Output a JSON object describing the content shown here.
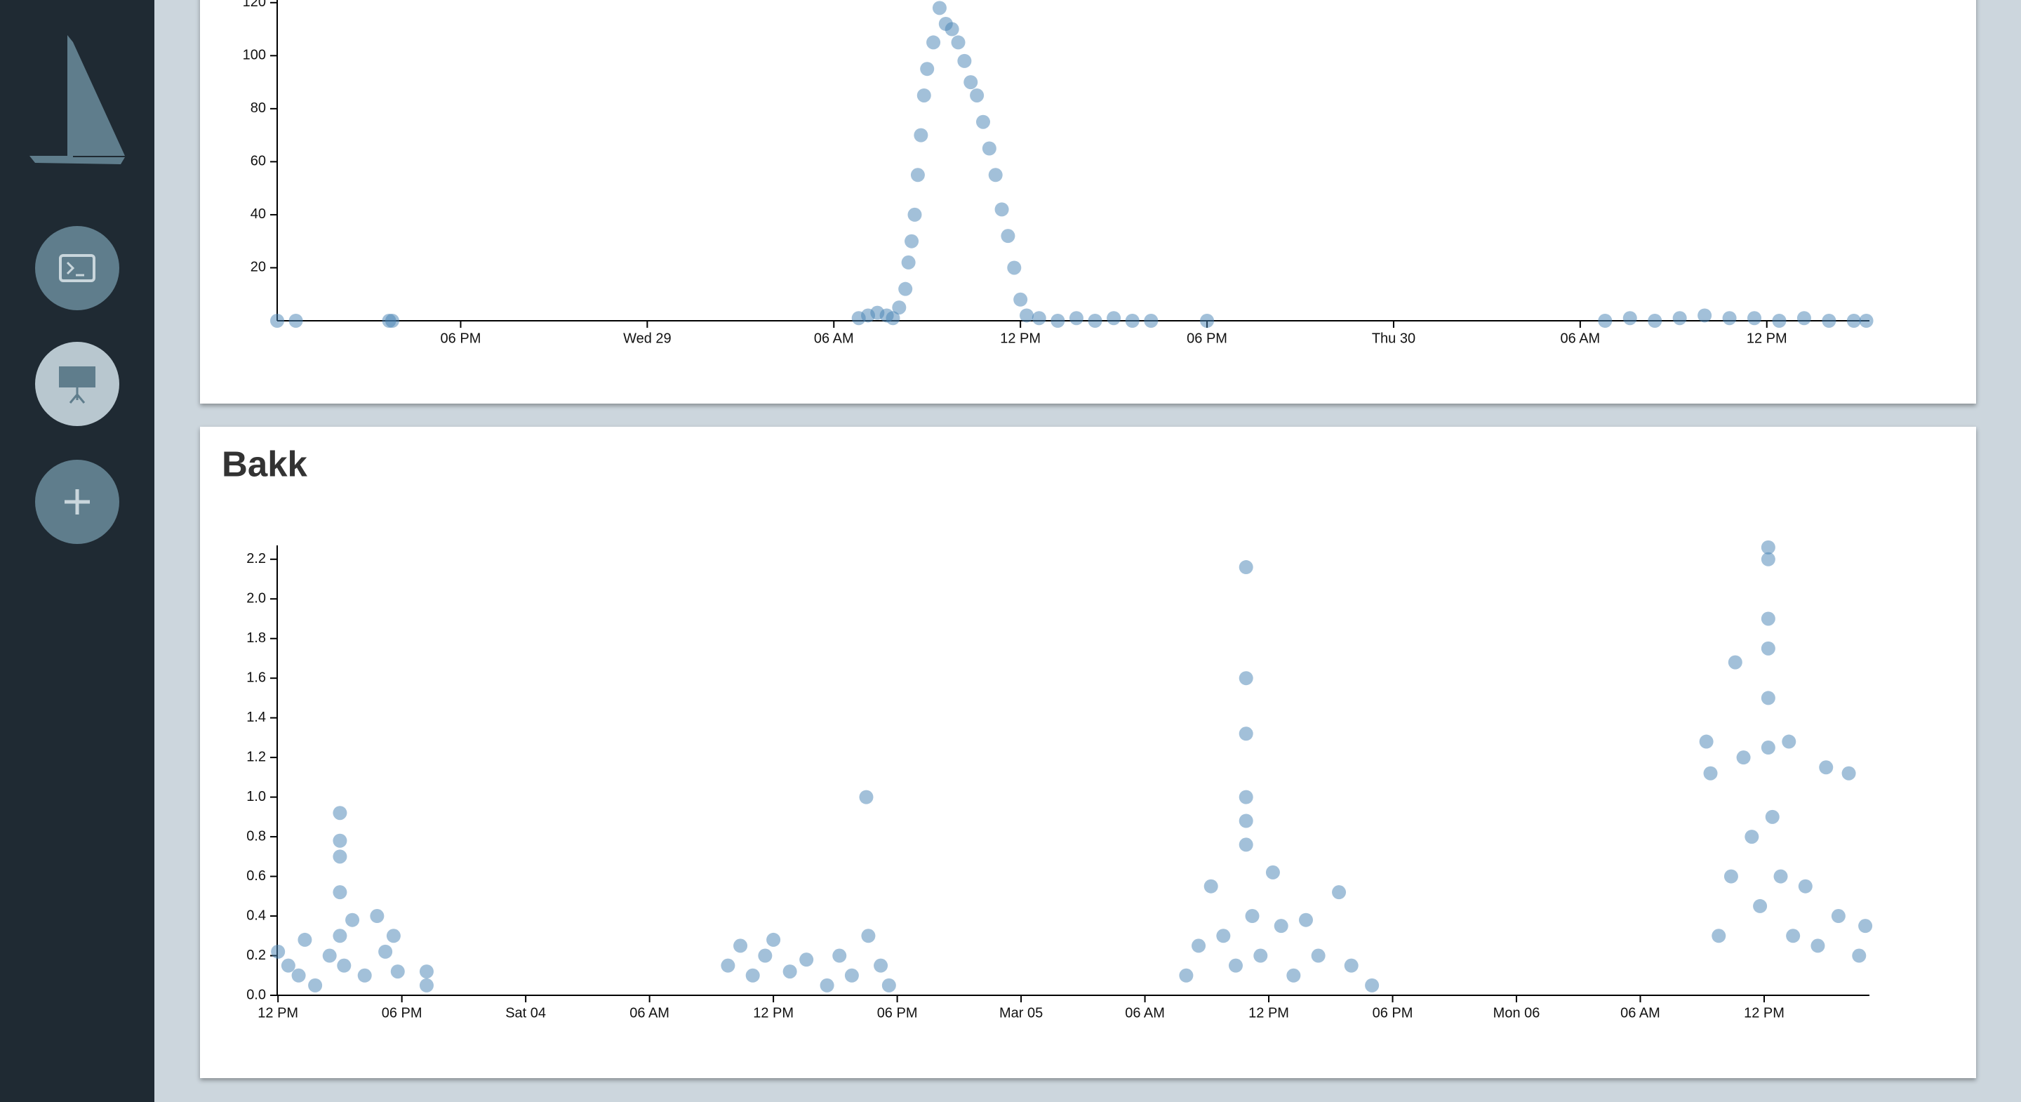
{
  "chart_data": [
    {
      "type": "scatter",
      "x": [
        0.1,
        0.7,
        3.7,
        3.8,
        18.8,
        19.1,
        19.4,
        19.7,
        19.9,
        20.1,
        20.3,
        20.4,
        20.5,
        20.6,
        20.7,
        20.8,
        20.9,
        21.0,
        21.2,
        21.4,
        21.6,
        21.8,
        22.0,
        22.2,
        22.4,
        22.6,
        22.8,
        23.0,
        23.2,
        23.4,
        23.6,
        23.8,
        24.0,
        24.2,
        24.6,
        25.2,
        25.8,
        26.4,
        27.0,
        27.6,
        28.2,
        30.0,
        42.8,
        43.6,
        44.4,
        45.2,
        46.0,
        46.8,
        47.6,
        48.4,
        49.2,
        50.0,
        50.8,
        51.2
      ],
      "values": [
        0,
        0,
        0,
        0,
        1,
        2,
        3,
        2,
        1,
        5,
        12,
        22,
        30,
        40,
        55,
        70,
        85,
        95,
        105,
        118,
        112,
        110,
        105,
        98,
        90,
        85,
        75,
        65,
        55,
        42,
        32,
        20,
        8,
        2,
        1,
        0,
        1,
        0,
        1,
        0,
        0,
        0,
        0,
        1,
        0,
        1,
        2,
        1,
        1,
        0,
        1,
        0,
        0,
        0
      ],
      "color": "#4682b4",
      "xlim": [
        0.1,
        51.3
      ],
      "xticks": [
        {
          "value": 6,
          "label": "06 PM"
        },
        {
          "value": 12,
          "label": "Wed 29"
        },
        {
          "value": 18,
          "label": "06 AM"
        },
        {
          "value": 24,
          "label": "12 PM"
        },
        {
          "value": 30,
          "label": "06 PM"
        },
        {
          "value": 36,
          "label": "Thu 30"
        },
        {
          "value": 42,
          "label": "06 AM"
        },
        {
          "value": 48,
          "label": "12 PM"
        }
      ],
      "ylim": [
        0,
        121
      ],
      "yticks": [
        20,
        40,
        60,
        80,
        100,
        120
      ]
    },
    {
      "type": "scatter",
      "title": "Bakk",
      "x": [
        0,
        0.5,
        1.0,
        1.3,
        1.8,
        2.5,
        3.0,
        3.0,
        3.0,
        3.0,
        3.0,
        3.2,
        3.6,
        4.2,
        4.8,
        5.2,
        5.6,
        5.8,
        7.2,
        7.2,
        21.8,
        22.4,
        23.0,
        23.6,
        24.0,
        24.8,
        25.6,
        26.6,
        27.2,
        27.8,
        28.5,
        28.6,
        29.2,
        29.6,
        44.0,
        44.6,
        45.2,
        45.8,
        46.4,
        46.9,
        46.9,
        46.9,
        46.9,
        46.9,
        46.9,
        47.2,
        47.6,
        48.2,
        48.6,
        49.2,
        49.8,
        50.4,
        51.4,
        52.0,
        53.0,
        69.2,
        69.4,
        69.8,
        70.4,
        70.6,
        71.0,
        71.4,
        71.8,
        72.2,
        72.2,
        72.2,
        72.2,
        72.2,
        72.2,
        72.4,
        72.8,
        73.2,
        73.4,
        74.0,
        74.6,
        75.0,
        75.6,
        76.1,
        76.6,
        76.9
      ],
      "values": [
        0.22,
        0.15,
        0.1,
        0.28,
        0.05,
        0.2,
        0.92,
        0.78,
        0.7,
        0.52,
        0.3,
        0.15,
        0.38,
        0.1,
        0.4,
        0.22,
        0.3,
        0.12,
        0.12,
        0.05,
        0.15,
        0.25,
        0.1,
        0.2,
        0.28,
        0.12,
        0.18,
        0.05,
        0.2,
        0.1,
        1.0,
        0.3,
        0.15,
        0.05,
        0.1,
        0.25,
        0.55,
        0.3,
        0.15,
        2.16,
        1.6,
        1.32,
        1.0,
        0.88,
        0.76,
        0.4,
        0.2,
        0.62,
        0.35,
        0.1,
        0.38,
        0.2,
        0.52,
        0.15,
        0.05,
        1.28,
        1.12,
        0.3,
        0.6,
        1.68,
        1.2,
        0.8,
        0.45,
        2.26,
        2.2,
        1.9,
        1.75,
        1.5,
        1.25,
        0.9,
        0.6,
        1.28,
        0.3,
        0.55,
        0.25,
        1.15,
        0.4,
        1.12,
        0.2,
        0.35
      ],
      "color": "#4682b4",
      "xlim": [
        -0.04,
        77.1
      ],
      "xticks": [
        {
          "value": 0,
          "label": "12 PM"
        },
        {
          "value": 6,
          "label": "06 PM"
        },
        {
          "value": 12,
          "label": "Sat 04"
        },
        {
          "value": 18,
          "label": "06 AM"
        },
        {
          "value": 24,
          "label": "12 PM"
        },
        {
          "value": 30,
          "label": "06 PM"
        },
        {
          "value": 36,
          "label": "Mar 05"
        },
        {
          "value": 42,
          "label": "06 AM"
        },
        {
          "value": 48,
          "label": "12 PM"
        },
        {
          "value": 54,
          "label": "06 PM"
        },
        {
          "value": 60,
          "label": "Mon 06"
        },
        {
          "value": 66,
          "label": "06 AM"
        },
        {
          "value": 72,
          "label": "12 PM"
        }
      ],
      "ylim": [
        0,
        2.27
      ],
      "yticks": [
        {
          "value": 0,
          "label": "0.0"
        },
        0.2,
        0.4,
        0.6,
        0.8,
        {
          "value": 1,
          "label": "1.0"
        },
        1.2,
        1.4,
        1.6,
        1.8,
        {
          "value": 2,
          "label": "2.0"
        },
        2.2
      ]
    }
  ]
}
